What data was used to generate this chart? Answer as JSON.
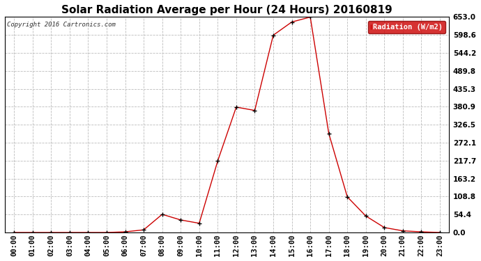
{
  "title": "Solar Radiation Average per Hour (24 Hours) 20160819",
  "copyright_text": "Copyright 2016 Cartronics.com",
  "legend_label": "Radiation (W/m2)",
  "hours": [
    "00:00",
    "01:00",
    "02:00",
    "03:00",
    "04:00",
    "05:00",
    "06:00",
    "07:00",
    "08:00",
    "09:00",
    "10:00",
    "11:00",
    "12:00",
    "13:00",
    "14:00",
    "15:00",
    "16:00",
    "17:00",
    "18:00",
    "19:00",
    "20:00",
    "21:00",
    "22:00",
    "23:00"
  ],
  "values": [
    0.0,
    0.0,
    0.0,
    0.0,
    0.0,
    0.0,
    2.0,
    8.0,
    55.0,
    38.0,
    28.0,
    217.0,
    380.0,
    370.0,
    598.0,
    638.0,
    653.0,
    300.0,
    108.0,
    50.0,
    15.0,
    5.0,
    2.0,
    0.0
  ],
  "ylim": [
    0.0,
    653.0
  ],
  "yticks": [
    0.0,
    54.4,
    108.8,
    163.2,
    217.7,
    272.1,
    326.5,
    380.9,
    435.3,
    489.8,
    544.2,
    598.6,
    653.0
  ],
  "ytick_labels": [
    "0.0",
    "54.4",
    "108.8",
    "163.2",
    "217.7",
    "272.1",
    "326.5",
    "380.9",
    "435.3",
    "489.8",
    "544.2",
    "598.6",
    "653.0"
  ],
  "line_color": "#cc0000",
  "marker_color": "#000000",
  "bg_color": "#ffffff",
  "grid_color": "#bbbbbb",
  "title_fontsize": 11,
  "tick_fontsize": 7.5,
  "legend_bg": "#cc0000",
  "legend_text_color": "#ffffff",
  "fig_width": 6.9,
  "fig_height": 3.75,
  "dpi": 100
}
